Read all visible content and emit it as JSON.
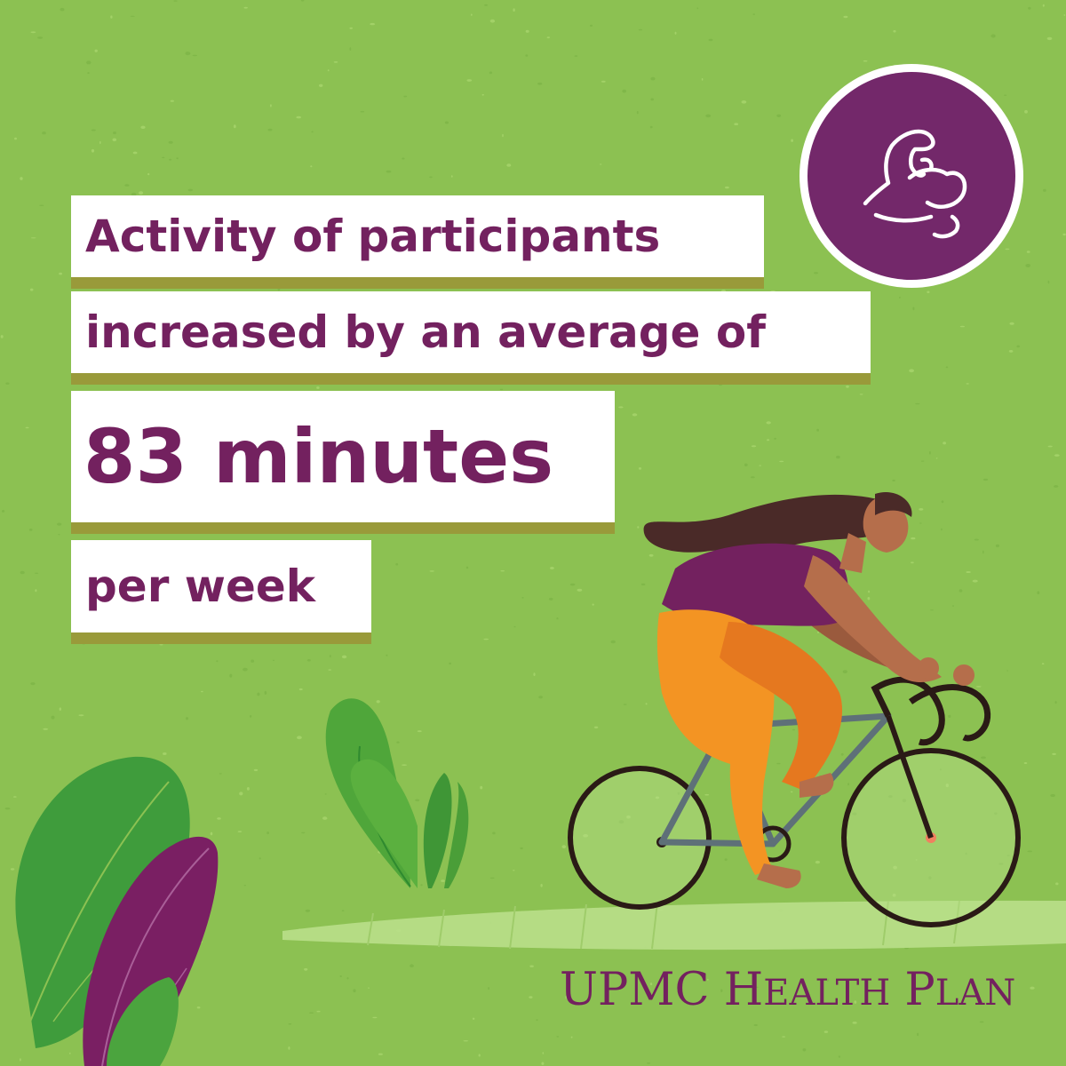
{
  "headline": {
    "line1": "Activity of participants",
    "line2": "increased by an average of",
    "line3": "83 minutes",
    "line4": "per week"
  },
  "badge": {
    "icon": "flexed-bicep-icon"
  },
  "logo": {
    "upmc": "UPMC",
    "health_h": "H",
    "health_rest": "EALTH",
    "plan_p": "P",
    "plan_rest": "LAN"
  },
  "colors": {
    "background": "#8cc152",
    "text_purple": "#73215f",
    "box_shadow": "#999a3a",
    "badge_purple": "#73286a",
    "shirt": "#73215f",
    "pants": "#f39423",
    "skin": "#b56e4b",
    "hair": "#4a2a28"
  }
}
